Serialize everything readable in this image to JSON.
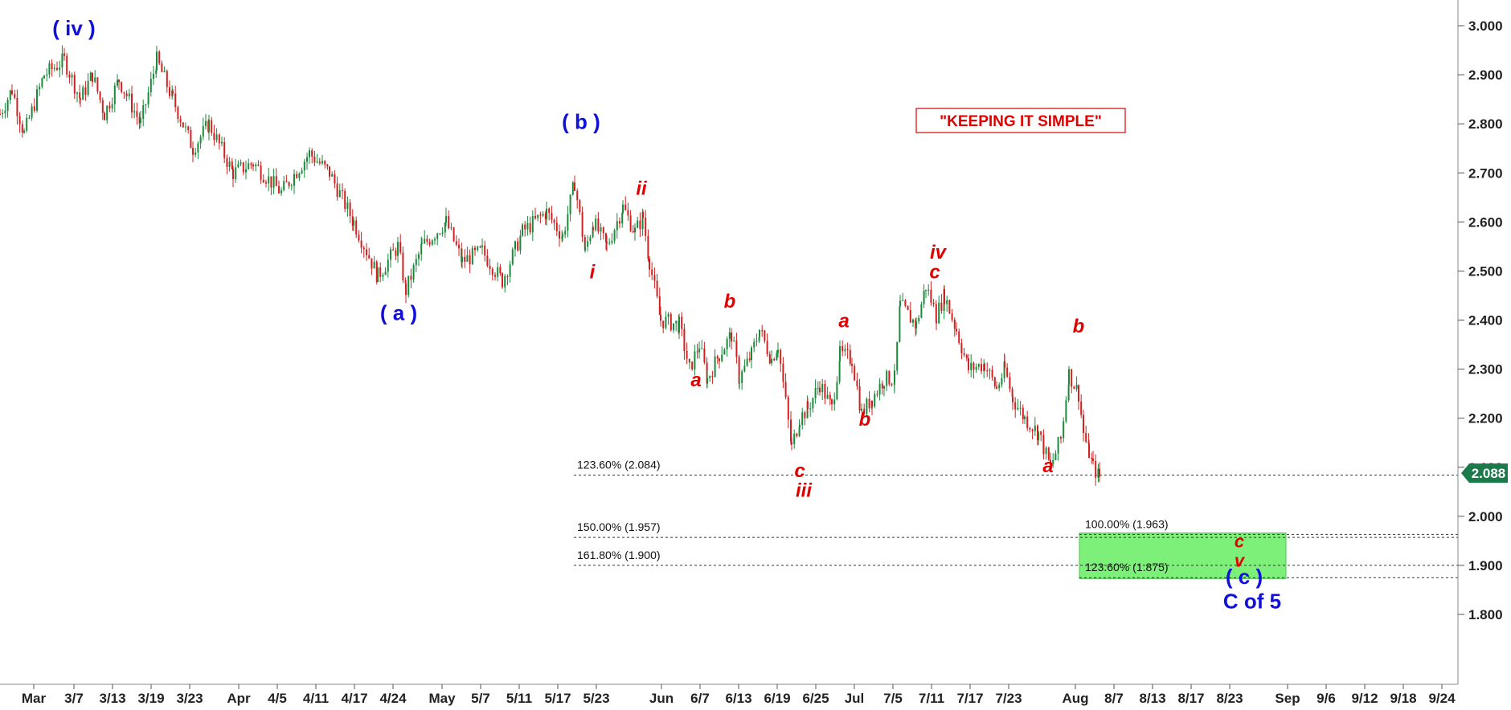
{
  "chart_data": {
    "type": "candlestick",
    "title": "",
    "xlabel": "",
    "ylabel": "",
    "ylim": [
      1.7,
      3.05
    ],
    "x_tick_labels": [
      "Mar",
      "3/7",
      "3/13",
      "3/19",
      "3/23",
      "Apr",
      "4/5",
      "4/11",
      "4/17",
      "4/24",
      "May",
      "5/7",
      "5/11",
      "5/17",
      "5/23",
      "Jun",
      "6/7",
      "6/13",
      "6/19",
      "6/25",
      "Jul",
      "7/5",
      "7/11",
      "7/17",
      "7/23",
      "Aug",
      "8/7",
      "8/13",
      "8/17",
      "8/23",
      "Sep",
      "9/6",
      "9/12",
      "9/18",
      "9/24"
    ],
    "x_tick_index": [
      42,
      92,
      140,
      188,
      236,
      297,
      345,
      393,
      441,
      489,
      550,
      598,
      646,
      694,
      742,
      823,
      871,
      919,
      967,
      1015,
      1063,
      1111,
      1159,
      1207,
      1255,
      1338,
      1386,
      1434,
      1482,
      1530,
      1602,
      1650,
      1698,
      1746,
      1794
    ],
    "y_ticks": [
      1.8,
      1.9,
      2.0,
      2.1,
      2.2,
      2.3,
      2.4,
      2.5,
      2.6,
      2.7,
      2.8,
      2.9,
      3.0
    ],
    "y_tick_labels": [
      "1.800",
      "1.900",
      "2.000",
      "2.100",
      "2.200",
      "2.300",
      "2.400",
      "2.500",
      "2.600",
      "2.700",
      "2.800",
      "2.900",
      "3.000"
    ],
    "last_price": 2.088,
    "last_price_label": "2.088",
    "pivots": [
      [
        0,
        2.82
      ],
      [
        15,
        2.87
      ],
      [
        30,
        2.78
      ],
      [
        55,
        2.9
      ],
      [
        80,
        2.93
      ],
      [
        100,
        2.85
      ],
      [
        115,
        2.9
      ],
      [
        130,
        2.82
      ],
      [
        148,
        2.89
      ],
      [
        175,
        2.8
      ],
      [
        195,
        2.93
      ],
      [
        215,
        2.85
      ],
      [
        240,
        2.75
      ],
      [
        260,
        2.8
      ],
      [
        290,
        2.7
      ],
      [
        315,
        2.72
      ],
      [
        350,
        2.66
      ],
      [
        385,
        2.74
      ],
      [
        410,
        2.7
      ],
      [
        440,
        2.6
      ],
      [
        470,
        2.49
      ],
      [
        495,
        2.55
      ],
      [
        505,
        2.46
      ],
      [
        525,
        2.55
      ],
      [
        555,
        2.6
      ],
      [
        575,
        2.52
      ],
      [
        600,
        2.54
      ],
      [
        625,
        2.48
      ],
      [
        650,
        2.58
      ],
      [
        680,
        2.62
      ],
      [
        700,
        2.57
      ],
      [
        715,
        2.68
      ],
      [
        728,
        2.54
      ],
      [
        738,
        2.6
      ],
      [
        755,
        2.55
      ],
      [
        775,
        2.63
      ],
      [
        790,
        2.58
      ],
      [
        800,
        2.61
      ],
      [
        808,
        2.52
      ],
      [
        822,
        2.4
      ],
      [
        845,
        2.39
      ],
      [
        858,
        2.3
      ],
      [
        870,
        2.35
      ],
      [
        880,
        2.28
      ],
      [
        895,
        2.33
      ],
      [
        910,
        2.37
      ],
      [
        920,
        2.28
      ],
      [
        935,
        2.33
      ],
      [
        945,
        2.38
      ],
      [
        960,
        2.32
      ],
      [
        968,
        2.35
      ],
      [
        985,
        2.14
      ],
      [
        995,
        2.2
      ],
      [
        1005,
        2.22
      ],
      [
        1020,
        2.27
      ],
      [
        1035,
        2.22
      ],
      [
        1045,
        2.33
      ],
      [
        1060,
        2.32
      ],
      [
        1072,
        2.21
      ],
      [
        1085,
        2.24
      ],
      [
        1100,
        2.28
      ],
      [
        1113,
        2.28
      ],
      [
        1120,
        2.43
      ],
      [
        1140,
        2.39
      ],
      [
        1152,
        2.47
      ],
      [
        1165,
        2.41
      ],
      [
        1175,
        2.45
      ],
      [
        1190,
        2.38
      ],
      [
        1205,
        2.3
      ],
      [
        1225,
        2.31
      ],
      [
        1240,
        2.26
      ],
      [
        1250,
        2.3
      ],
      [
        1260,
        2.24
      ],
      [
        1275,
        2.2
      ],
      [
        1292,
        2.17
      ],
      [
        1307,
        2.1
      ],
      [
        1320,
        2.16
      ],
      [
        1330,
        2.29
      ],
      [
        1342,
        2.25
      ],
      [
        1348,
        2.17
      ],
      [
        1355,
        2.13
      ],
      [
        1360,
        2.1
      ],
      [
        1368,
        2.08
      ],
      [
        1371,
        2.088
      ]
    ],
    "x_domain": [
      0,
      1814
    ]
  },
  "wave_labels": [
    {
      "text": "( iv )",
      "x": 92,
      "y": 2.98,
      "color": "blue",
      "size": 26
    },
    {
      "text": "( b )",
      "x": 723,
      "y": 2.79,
      "color": "blue",
      "size": 26
    },
    {
      "text": "( a )",
      "x": 496,
      "y": 2.4,
      "color": "blue",
      "size": 26
    },
    {
      "text": "( c )",
      "x": 1548,
      "y": 1.862,
      "color": "blue",
      "size": 26
    },
    {
      "text": "C of 5",
      "x": 1558,
      "y": 1.812,
      "color": "blue",
      "size": 26
    },
    {
      "text": "ii",
      "x": 798,
      "y": 2.655,
      "color": "red",
      "size": 24
    },
    {
      "text": "i",
      "x": 737,
      "y": 2.485,
      "color": "red",
      "size": 24
    },
    {
      "text": "b",
      "x": 908,
      "y": 2.425,
      "color": "red",
      "size": 24
    },
    {
      "text": "a",
      "x": 866,
      "y": 2.265,
      "color": "red",
      "size": 24
    },
    {
      "text": "c",
      "x": 995,
      "y": 2.08,
      "color": "red",
      "size": 24
    },
    {
      "text": "iii",
      "x": 1000,
      "y": 2.04,
      "color": "red",
      "size": 24
    },
    {
      "text": "a",
      "x": 1050,
      "y": 2.385,
      "color": "red",
      "size": 24
    },
    {
      "text": "b",
      "x": 1076,
      "y": 2.185,
      "color": "red",
      "size": 24
    },
    {
      "text": "iv",
      "x": 1167,
      "y": 2.525,
      "color": "red",
      "size": 24
    },
    {
      "text": "c",
      "x": 1163,
      "y": 2.485,
      "color": "red",
      "size": 24
    },
    {
      "text": "b",
      "x": 1342,
      "y": 2.375,
      "color": "red",
      "size": 24
    },
    {
      "text": "a",
      "x": 1304,
      "y": 2.09,
      "color": "red",
      "size": 24
    },
    {
      "text": "c",
      "x": 1542,
      "y": 1.937,
      "color": "red",
      "size": 22
    },
    {
      "text": "v",
      "x": 1542,
      "y": 1.897,
      "color": "red",
      "size": 22
    }
  ],
  "fib_lines": [
    {
      "label": "123.60% (2.084)",
      "value": 2.084,
      "x_start": 714,
      "label_x": 718
    },
    {
      "label": "150.00% (1.957)",
      "value": 1.957,
      "x_start": 714,
      "label_x": 718
    },
    {
      "label": "161.80% (1.900)",
      "value": 1.9,
      "x_start": 714,
      "label_x": 718
    },
    {
      "label": "100.00% (1.963)",
      "value": 1.963,
      "x_start": 1343,
      "label_x": 1350
    },
    {
      "label": "123.60% (1.875)",
      "value": 1.875,
      "x_start": 1343,
      "label_x": 1350
    }
  ],
  "target_zone": {
    "x_start": 1343,
    "x_end": 1600,
    "y_top": 1.966,
    "y_bottom": 1.873,
    "color": "#7df07a"
  },
  "note": {
    "text": "\"KEEPING IT SIMPLE\"",
    "x": 1270,
    "y": 2.81
  },
  "colors": {
    "up": "#1a8a3a",
    "down": "#d02020",
    "price_tag": "#1a7a4a"
  }
}
